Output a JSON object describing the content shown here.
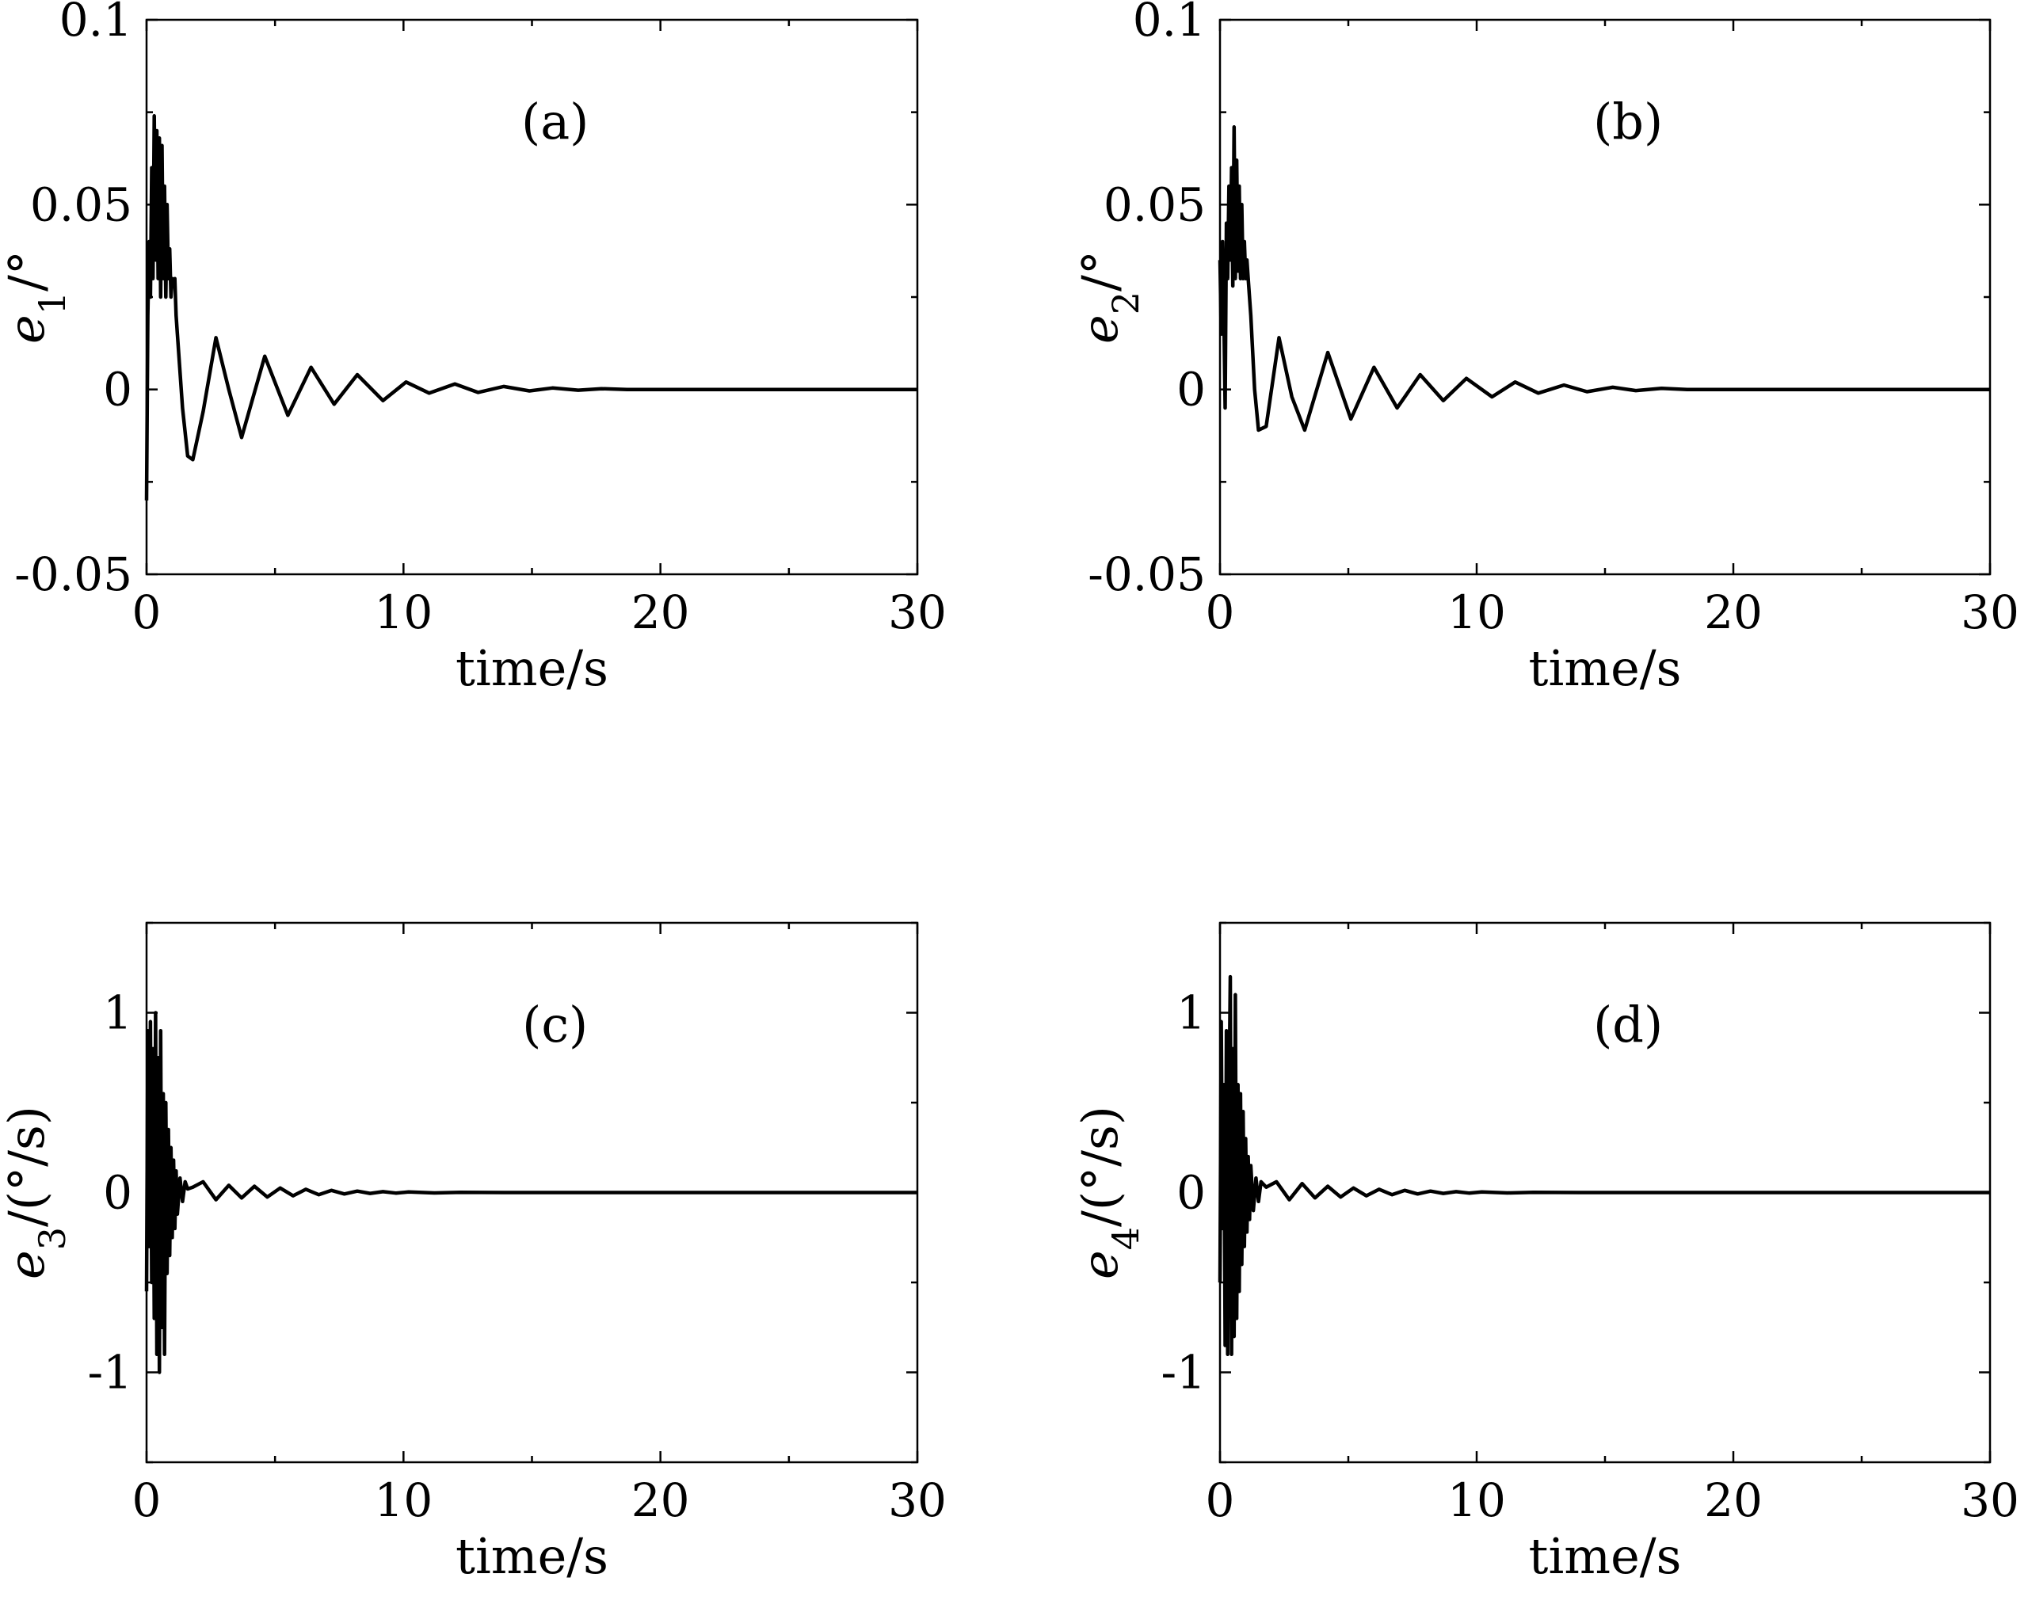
{
  "chart_data": [
    {
      "type": "line",
      "panel_label": "(a)",
      "xlabel": "time/s",
      "ylabel_symbol": "e",
      "ylabel_subscript": "1",
      "ylabel_unit": "/°",
      "xlim": [
        0,
        30
      ],
      "ylim": [
        -0.05,
        0.1
      ],
      "xticks": [
        0,
        10,
        20,
        30
      ],
      "xtick_labels": [
        "0",
        "10",
        "20",
        "30"
      ],
      "yticks": [
        -0.05,
        0,
        0.05,
        0.1
      ],
      "ytick_labels": [
        "-0.05",
        "0",
        "0.05",
        "0.1"
      ],
      "grid": false,
      "series": [
        {
          "x": [
            0,
            0.05,
            0.1,
            0.15,
            0.2,
            0.25,
            0.3,
            0.35,
            0.4,
            0.45,
            0.5,
            0.55,
            0.6,
            0.65,
            0.7,
            0.75,
            0.8,
            0.85,
            0.9,
            0.95,
            1.0,
            1.05,
            1.1,
            1.15,
            1.2,
            1.4,
            1.6,
            1.8,
            2.2,
            2.7,
            3.2,
            3.7,
            4.6,
            5.5,
            6.4,
            7.3,
            8.2,
            9.2,
            10.1,
            11.0,
            12.0,
            12.9,
            13.9,
            14.9,
            15.8,
            16.8,
            17.7,
            18.7,
            20,
            22,
            25,
            30
          ],
          "y": [
            -0.03,
            0.02,
            0.04,
            0.025,
            0.06,
            0.03,
            0.074,
            0.035,
            0.07,
            0.03,
            0.068,
            0.025,
            0.066,
            0.03,
            0.055,
            0.025,
            0.05,
            0.03,
            0.038,
            0.025,
            0.03,
            0.028,
            0.03,
            0.02,
            0.015,
            -0.005,
            -0.018,
            -0.019,
            -0.006,
            0.014,
            0.0,
            -0.013,
            0.009,
            -0.007,
            0.006,
            -0.004,
            0.004,
            -0.003,
            0.002,
            -0.001,
            0.0015,
            -0.0008,
            0.0008,
            -0.0004,
            0.0004,
            -0.0002,
            0.0002,
            0.0,
            0.0,
            0.0,
            0.0,
            0.0
          ]
        }
      ]
    },
    {
      "type": "line",
      "panel_label": "(b)",
      "xlabel": "time/s",
      "ylabel_symbol": "e",
      "ylabel_subscript": "2",
      "ylabel_unit": "/°",
      "xlim": [
        0,
        30
      ],
      "ylim": [
        -0.05,
        0.1
      ],
      "xticks": [
        0,
        10,
        20,
        30
      ],
      "xtick_labels": [
        "0",
        "10",
        "20",
        "30"
      ],
      "yticks": [
        -0.05,
        0,
        0.05,
        0.1
      ],
      "ytick_labels": [
        "-0.05",
        "0",
        "0.05",
        "0.1"
      ],
      "grid": false,
      "series": [
        {
          "x": [
            0,
            0.05,
            0.1,
            0.15,
            0.2,
            0.25,
            0.3,
            0.35,
            0.4,
            0.45,
            0.5,
            0.55,
            0.6,
            0.65,
            0.7,
            0.75,
            0.8,
            0.85,
            0.9,
            0.95,
            1.0,
            1.05,
            1.1,
            1.2,
            1.35,
            1.5,
            1.8,
            2.3,
            2.8,
            3.3,
            4.2,
            5.1,
            6.0,
            6.9,
            7.8,
            8.7,
            9.6,
            10.6,
            11.5,
            12.4,
            13.4,
            14.3,
            15.3,
            16.2,
            17.2,
            18.2,
            20,
            22,
            25,
            30
          ],
          "y": [
            0.035,
            0.015,
            0.04,
            0.02,
            -0.005,
            0.045,
            0.03,
            0.055,
            0.035,
            0.06,
            0.028,
            0.071,
            0.03,
            0.062,
            0.032,
            0.055,
            0.03,
            0.05,
            0.03,
            0.04,
            0.03,
            0.035,
            0.03,
            0.02,
            0.0,
            -0.011,
            -0.01,
            0.014,
            -0.002,
            -0.011,
            0.01,
            -0.008,
            0.006,
            -0.005,
            0.004,
            -0.003,
            0.003,
            -0.002,
            0.002,
            -0.001,
            0.0012,
            -0.0006,
            0.0006,
            -0.0003,
            0.0003,
            0.0,
            0.0,
            0.0,
            0.0,
            0.0
          ]
        }
      ]
    },
    {
      "type": "line",
      "panel_label": "(c)",
      "xlabel": "time/s",
      "ylabel_symbol": "e",
      "ylabel_subscript": "3",
      "ylabel_unit": "/(°/s)",
      "xlim": [
        0,
        30
      ],
      "ylim": [
        -1.5,
        1.5
      ],
      "xticks": [
        0,
        10,
        20,
        30
      ],
      "xtick_labels": [
        "0",
        "10",
        "20",
        "30"
      ],
      "yticks": [
        -1,
        0,
        1
      ],
      "ytick_labels": [
        "-1",
        "0",
        "1"
      ],
      "grid": false,
      "series": [
        {
          "x": [
            0,
            0.05,
            0.1,
            0.15,
            0.2,
            0.25,
            0.3,
            0.35,
            0.4,
            0.45,
            0.5,
            0.55,
            0.6,
            0.65,
            0.7,
            0.75,
            0.8,
            0.85,
            0.9,
            0.95,
            1.0,
            1.05,
            1.1,
            1.15,
            1.2,
            1.3,
            1.4,
            1.5,
            1.6,
            1.8,
            2.2,
            2.7,
            3.2,
            3.7,
            4.2,
            4.7,
            5.2,
            5.7,
            6.2,
            6.7,
            7.2,
            7.7,
            8.2,
            8.7,
            9.2,
            9.7,
            10.2,
            11.2,
            12.2,
            14,
            18,
            25,
            30
          ],
          "y": [
            -0.55,
            0.9,
            -0.3,
            0.95,
            -0.5,
            0.8,
            -0.7,
            1.0,
            -0.9,
            0.75,
            -1.0,
            0.9,
            -0.75,
            0.55,
            -0.9,
            0.5,
            -0.45,
            0.35,
            -0.35,
            0.25,
            -0.25,
            0.18,
            -0.2,
            0.12,
            -0.12,
            0.08,
            -0.05,
            0.06,
            0.02,
            0.03,
            0.06,
            -0.04,
            0.04,
            -0.03,
            0.035,
            -0.025,
            0.025,
            -0.018,
            0.018,
            -0.012,
            0.012,
            -0.008,
            0.008,
            -0.005,
            0.005,
            -0.003,
            0.003,
            -0.002,
            0.001,
            0.0,
            0.0,
            0.0,
            0.0
          ]
        }
      ]
    },
    {
      "type": "line",
      "panel_label": "(d)",
      "xlabel": "time/s",
      "ylabel_symbol": "e",
      "ylabel_subscript": "4",
      "ylabel_unit": "/(°/s)",
      "xlim": [
        0,
        30
      ],
      "ylim": [
        -1.5,
        1.5
      ],
      "xticks": [
        0,
        10,
        20,
        30
      ],
      "xtick_labels": [
        "0",
        "10",
        "20",
        "30"
      ],
      "yticks": [
        -1,
        0,
        1
      ],
      "ytick_labels": [
        "-1",
        "0",
        "1"
      ],
      "grid": false,
      "series": [
        {
          "x": [
            0,
            0.05,
            0.1,
            0.15,
            0.2,
            0.25,
            0.3,
            0.35,
            0.4,
            0.45,
            0.5,
            0.55,
            0.6,
            0.65,
            0.7,
            0.75,
            0.8,
            0.85,
            0.9,
            0.95,
            1.0,
            1.05,
            1.1,
            1.15,
            1.2,
            1.3,
            1.4,
            1.5,
            1.6,
            1.8,
            2.2,
            2.7,
            3.2,
            3.7,
            4.2,
            4.7,
            5.2,
            5.7,
            6.2,
            6.7,
            7.2,
            7.7,
            8.2,
            8.7,
            9.2,
            9.7,
            10.2,
            11.2,
            12.2,
            14,
            18,
            25,
            30
          ],
          "y": [
            -0.5,
            0.95,
            -0.2,
            0.6,
            -0.85,
            0.9,
            -0.9,
            0.45,
            1.2,
            -0.9,
            0.8,
            -0.8,
            1.1,
            -0.7,
            0.6,
            -0.55,
            0.55,
            -0.4,
            0.45,
            -0.3,
            0.3,
            -0.22,
            0.2,
            -0.15,
            0.15,
            -0.1,
            0.08,
            -0.05,
            0.06,
            0.03,
            0.06,
            -0.04,
            0.05,
            -0.03,
            0.035,
            -0.025,
            0.025,
            -0.018,
            0.018,
            -0.012,
            0.012,
            -0.008,
            0.008,
            -0.005,
            0.005,
            -0.003,
            0.003,
            -0.002,
            0.001,
            0.0,
            0.0,
            0.0,
            0.0
          ]
        }
      ]
    }
  ]
}
